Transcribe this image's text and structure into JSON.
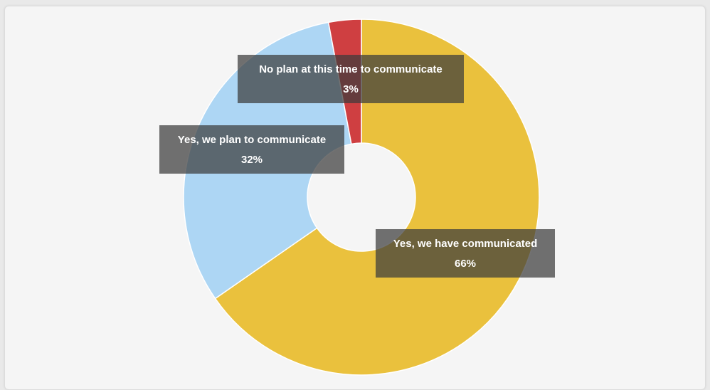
{
  "chart_data": {
    "type": "pie",
    "donut": true,
    "categories": [
      "Yes, we have communicated",
      "Yes, we plan to communicate",
      "No plan at this time to communicate"
    ],
    "values": [
      66,
      32,
      3
    ],
    "value_labels": [
      "66%",
      "32%",
      "3%"
    ],
    "colors": [
      "#eac13d",
      "#add6f4",
      "#cf3f41"
    ],
    "title": "",
    "legend": "none"
  }
}
